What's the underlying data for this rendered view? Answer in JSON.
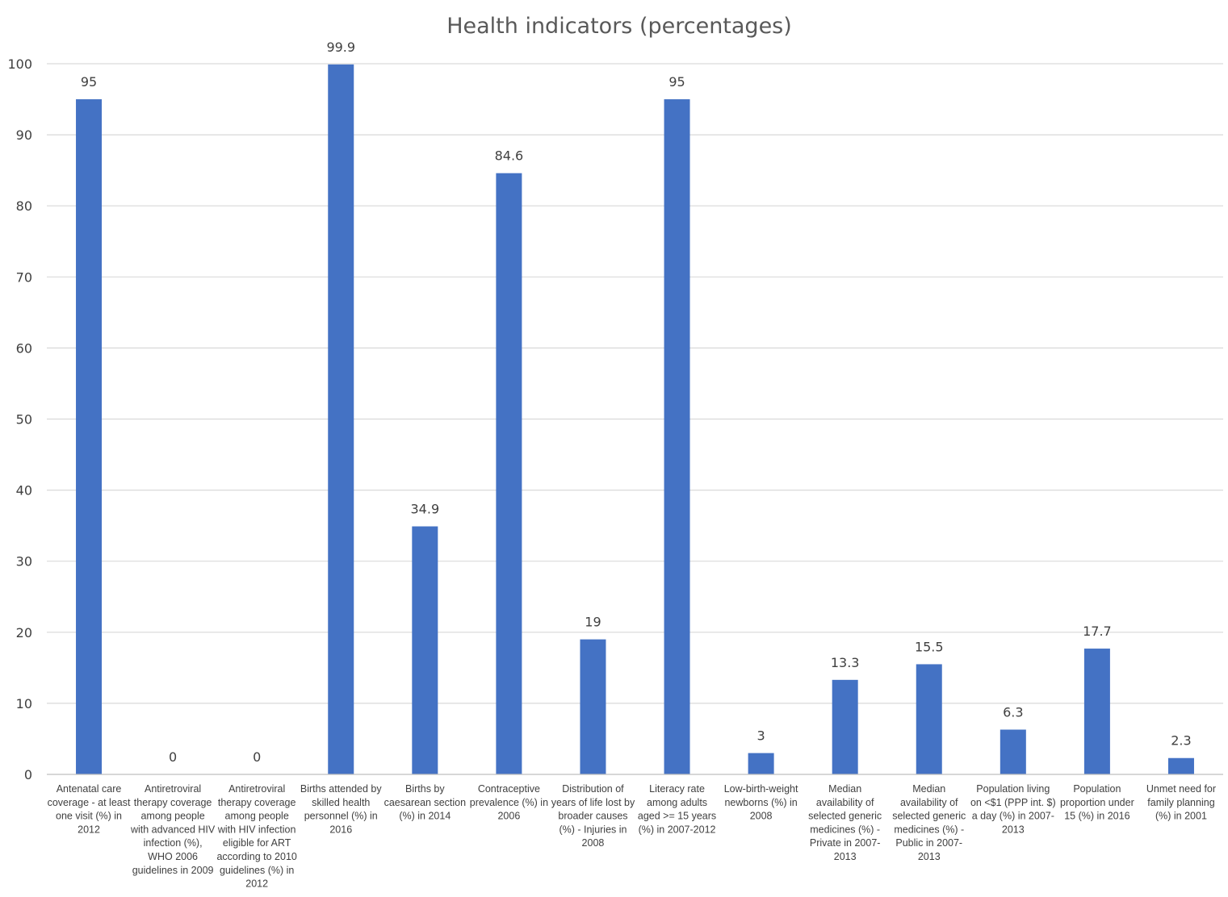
{
  "chart_data": {
    "type": "bar",
    "title": "Health indicators (percentages)",
    "xlabel": "",
    "ylabel": "",
    "ylim": [
      0,
      100
    ],
    "yticks": [
      0,
      10,
      20,
      30,
      40,
      50,
      60,
      70,
      80,
      90,
      100
    ],
    "grid": true,
    "legend": "none",
    "bar_color": "#4472c4",
    "categories": [
      "Antenatal care coverage - at least one visit (%) in 2012",
      "Antiretroviral therapy coverage among people with advanced HIV infection (%), WHO 2006 guidelines in 2009",
      "Antiretroviral therapy coverage among people with HIV infection eligible for ART according to 2010 guidelines (%) in 2012",
      "Births attended by skilled health personnel (%) in 2016",
      "Births by caesarean section (%) in 2014",
      "Contraceptive prevalence (%) in 2006",
      "Distribution of years of life lost by broader causes (%) - Injuries in 2008",
      "Literacy rate among adults aged >= 15 years (%) in 2007-2012",
      "Low-birth-weight newborns (%) in 2008",
      "Median availability of selected generic medicines (%) - Private in 2007-2013",
      "Median availability of selected generic medicines (%) - Public in 2007-2013",
      "Population living on <$1 (PPP int. $) a day (%) in 2007-2013",
      "Population proportion under 15 (%) in 2016",
      "Unmet need for family planning (%) in 2001"
    ],
    "category_lines": [
      [
        "Antenatal care",
        "coverage - at least",
        "one visit (%) in",
        "2012"
      ],
      [
        "Antiretroviral",
        "therapy coverage",
        "among people",
        "with advanced HIV",
        "infection (%),",
        "WHO 2006",
        "guidelines in 2009"
      ],
      [
        "Antiretroviral",
        "therapy coverage",
        "among people",
        "with HIV infection",
        "eligible for ART",
        "according to 2010",
        "guidelines (%) in",
        "2012"
      ],
      [
        "Births attended by",
        "skilled health",
        "personnel (%) in",
        "2016"
      ],
      [
        "Births by",
        "caesarean section",
        "(%) in 2014"
      ],
      [
        "Contraceptive",
        "prevalence (%) in",
        "2006"
      ],
      [
        "Distribution of",
        "years of life lost by",
        "broader causes",
        "(%) - Injuries in",
        "2008"
      ],
      [
        "Literacy rate",
        "among adults",
        "aged >= 15 years",
        "(%) in 2007-2012"
      ],
      [
        "Low-birth-weight",
        "newborns (%) in",
        "2008"
      ],
      [
        "Median",
        "availability of",
        "selected generic",
        "medicines (%) -",
        "Private in 2007-",
        "2013"
      ],
      [
        "Median",
        "availability of",
        "selected generic",
        "medicines (%) -",
        "Public in 2007-",
        "2013"
      ],
      [
        "Population living",
        "on <$1 (PPP int. $)",
        "a day (%) in 2007-",
        "2013"
      ],
      [
        "Population",
        "proportion under",
        "15 (%) in 2016"
      ],
      [
        "Unmet need for",
        "family planning",
        "(%) in 2001"
      ]
    ],
    "values": [
      95,
      0,
      0,
      99.9,
      34.9,
      84.6,
      19,
      95,
      3,
      13.3,
      15.5,
      6.3,
      17.7,
      2.3
    ],
    "data_labels": [
      "95",
      "0",
      "0",
      "99.9",
      "34.9",
      "84.6",
      "19",
      "95",
      "3",
      "13.3",
      "15.5",
      "6.3",
      "17.7",
      "2.3"
    ]
  }
}
